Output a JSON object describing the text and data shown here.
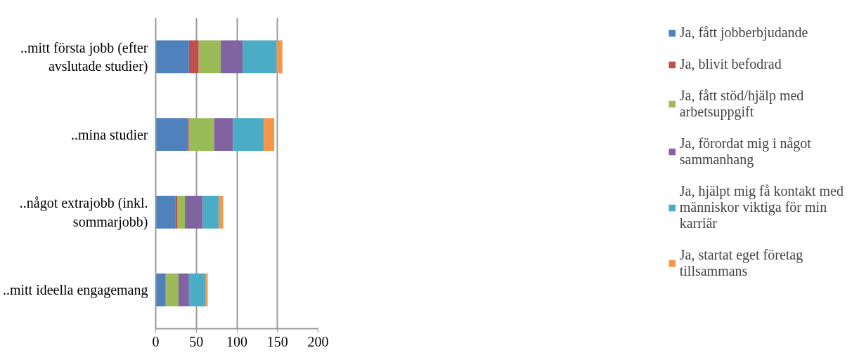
{
  "chart_data": {
    "type": "bar",
    "orientation": "horizontal",
    "stacked": true,
    "categories": [
      "..mitt första jobb (efter avslutade studier)",
      "..mina studier",
      "..något extrajobb (inkl. sommarjobb)",
      "..mitt ideella engagemang"
    ],
    "series": [
      {
        "name": "Ja, fått jobberbjudande",
        "color": "#4f81bd",
        "values": [
          41,
          40,
          24,
          12
        ]
      },
      {
        "name": "Ja, blivit befodrad",
        "color": "#c0504d",
        "values": [
          12,
          1,
          3,
          1
        ]
      },
      {
        "name": "Ja, fått stöd/hjälp med arbetsuppgift",
        "color": "#9bbb59",
        "values": [
          27,
          31,
          9,
          15
        ]
      },
      {
        "name": "Ja, förordat mig i något sammanhang",
        "color": "#8064a2",
        "values": [
          27,
          23,
          22,
          13
        ]
      },
      {
        "name": "Ja, hjälpt mig få kontakt med människor viktiga för min karriär",
        "color": "#4bacc6",
        "values": [
          42,
          38,
          20,
          20
        ]
      },
      {
        "name": "Ja, startat eget företag tillsammans",
        "color": "#f79646",
        "values": [
          7,
          13,
          5,
          3
        ]
      }
    ],
    "xlim": [
      0,
      200
    ],
    "xticks": [
      0,
      50,
      100,
      150,
      200
    ],
    "grid": "x",
    "legend": "right"
  }
}
